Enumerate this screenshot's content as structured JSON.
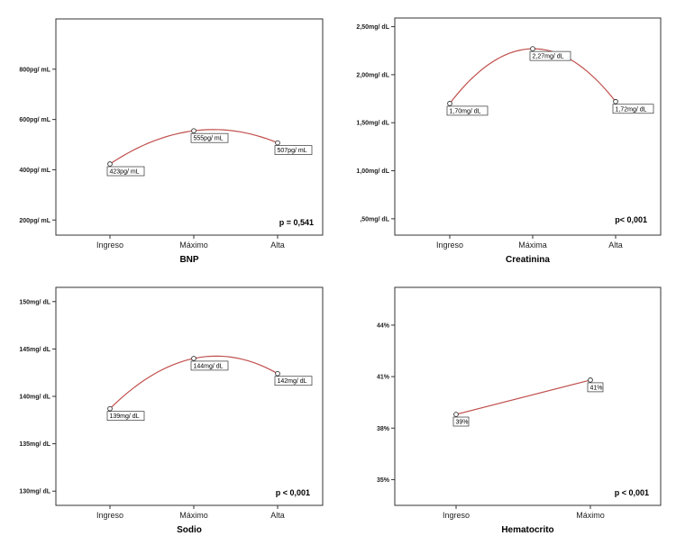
{
  "chart_data": [
    {
      "type": "line",
      "title": "BNP",
      "categories": [
        "Ingreso",
        "Máximo",
        "Alta"
      ],
      "values": [
        423,
        555,
        507
      ],
      "data_labels": [
        "423pg/ mL",
        "555pg/ mL",
        "507pg/ mL"
      ],
      "yticks": [
        200,
        400,
        600,
        800
      ],
      "ytick_labels": [
        "200pg/ mL",
        "400pg/ mL",
        "600pg/ mL",
        "800pg/ mL"
      ],
      "ylim": [
        140,
        1000
      ],
      "annotation": "p = 0,541",
      "smooth": true,
      "line_color": "#c0504d"
    },
    {
      "type": "line",
      "title": "Creatinina",
      "categories": [
        "Ingreso",
        "Máxima",
        "Alta"
      ],
      "values": [
        1.7,
        2.27,
        1.72
      ],
      "data_labels": [
        "1,70mg/ dL",
        "2,27mg/ dL",
        "1,72mg/ dL"
      ],
      "yticks": [
        0.5,
        1.0,
        1.5,
        2.0,
        2.5
      ],
      "ytick_labels": [
        ",50mg/ dL",
        "1,00mg/ dL",
        "1,50mg/ dL",
        "2,00mg/ dL",
        "2,50mg/ dL"
      ],
      "ylim": [
        0.33,
        2.59
      ],
      "annotation": "p< 0,001",
      "smooth": true,
      "line_color": "#c0504d"
    },
    {
      "type": "line",
      "title": "Sodio",
      "categories": [
        "Ingreso",
        "Máximo",
        "Alta"
      ],
      "values": [
        138.7,
        144.0,
        142.4
      ],
      "data_labels": [
        "139mg/ dL",
        "144mg/ dL",
        "142mg/ dL"
      ],
      "yticks": [
        130,
        135,
        140,
        145,
        150
      ],
      "ytick_labels": [
        "130mg/ dL",
        "135mg/ dL",
        "140mg/ dL",
        "145mg/ dL",
        "150mg/ dL"
      ],
      "ylim": [
        128.5,
        151.5
      ],
      "annotation": "p < 0,001",
      "smooth": true,
      "line_color": "#c0504d"
    },
    {
      "type": "line",
      "title": "Hematocrito",
      "categories": [
        "Ingreso",
        "Máximo"
      ],
      "values": [
        38.8,
        40.8
      ],
      "data_labels": [
        "39%",
        "41%"
      ],
      "yticks": [
        35,
        38,
        41,
        44
      ],
      "ytick_labels": [
        "35%",
        "38%",
        "41%",
        "44%"
      ],
      "ylim": [
        33.5,
        46.2
      ],
      "annotation": "p < 0,001",
      "smooth": false,
      "line_color": "#c0504d"
    }
  ]
}
